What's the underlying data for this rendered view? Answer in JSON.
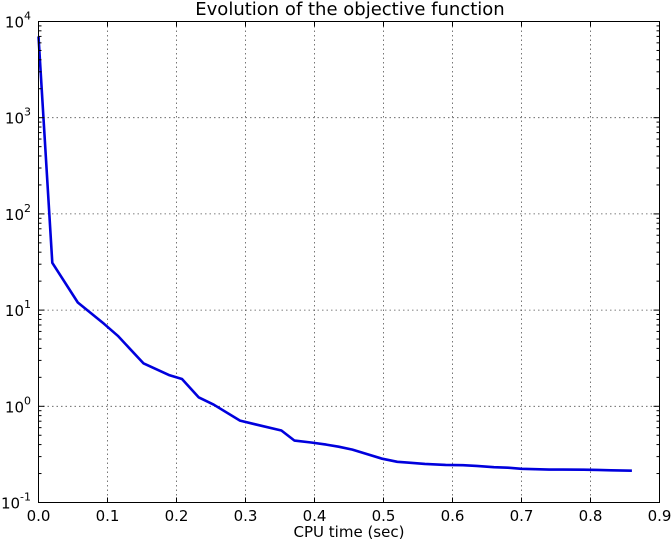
{
  "chart_data": {
    "type": "line",
    "title": "Evolution of the objective function",
    "xlabel": "CPU time (sec)",
    "ylabel": "",
    "xscale": "linear",
    "yscale": "log",
    "xlim": [
      0.0,
      0.9
    ],
    "ylim": [
      0.1,
      10000
    ],
    "grid": true,
    "x_ticks": [
      "0.0",
      "0.1",
      "0.2",
      "0.3",
      "0.4",
      "0.5",
      "0.6",
      "0.7",
      "0.8",
      "0.9"
    ],
    "x_tick_values": [
      0.0,
      0.1,
      0.2,
      0.3,
      0.4,
      0.5,
      0.6,
      0.7,
      0.8,
      0.9
    ],
    "y_tick_values": [
      0.1,
      1,
      10,
      100,
      1000,
      10000
    ],
    "y_ticks": [
      {
        "base": "10",
        "exp": "-1"
      },
      {
        "base": "10",
        "exp": "0"
      },
      {
        "base": "10",
        "exp": "1"
      },
      {
        "base": "10",
        "exp": "2"
      },
      {
        "base": "10",
        "exp": "3"
      },
      {
        "base": "10",
        "exp": "4"
      }
    ],
    "series": [
      {
        "color": "#0000dd",
        "x": [
          0.0,
          0.02,
          0.057,
          0.095,
          0.115,
          0.152,
          0.19,
          0.208,
          0.232,
          0.254,
          0.292,
          0.314,
          0.352,
          0.371,
          0.395,
          0.417,
          0.435,
          0.455,
          0.475,
          0.498,
          0.52,
          0.535,
          0.56,
          0.59,
          0.615,
          0.635,
          0.66,
          0.68,
          0.7,
          0.72,
          0.74,
          0.76,
          0.79,
          0.81,
          0.83,
          0.86
        ],
        "y": [
          7000,
          31,
          12,
          7.2,
          5.4,
          2.8,
          2.1,
          1.92,
          1.24,
          1.04,
          0.71,
          0.65,
          0.56,
          0.44,
          0.42,
          0.4,
          0.38,
          0.355,
          0.32,
          0.285,
          0.265,
          0.26,
          0.252,
          0.246,
          0.244,
          0.24,
          0.233,
          0.23,
          0.224,
          0.222,
          0.22,
          0.22,
          0.219,
          0.218,
          0.216,
          0.214
        ]
      }
    ]
  }
}
